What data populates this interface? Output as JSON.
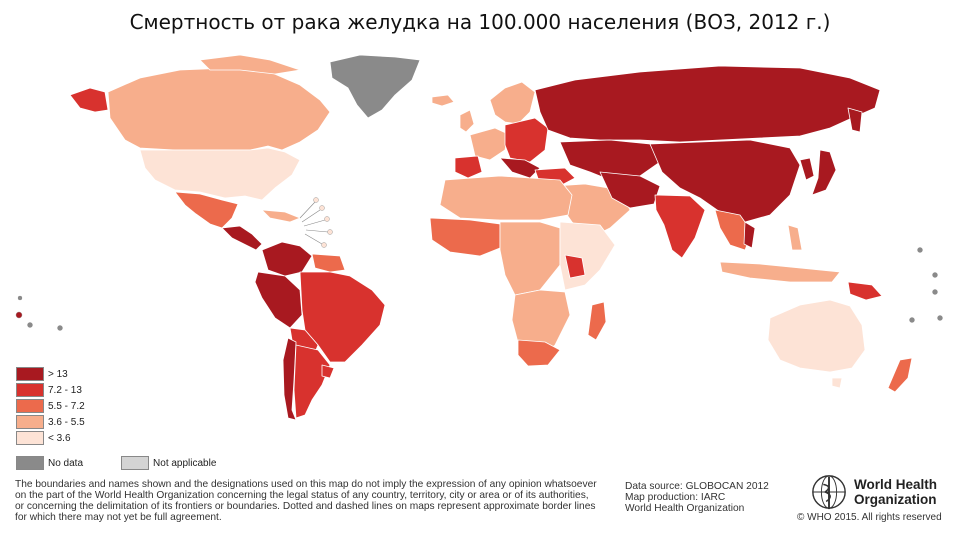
{
  "title": "Смертность от рака желудка на 100.000 населения (ВОЗ, 2012 г.)",
  "colors": {
    "c5": "#a81920",
    "c4": "#d8322e",
    "c3": "#ec6a4c",
    "c2": "#f7ae8c",
    "c1": "#fde3d6",
    "nodata": "#8a8a8a",
    "na": "#d4d4d4"
  },
  "legend": [
    {
      "label": ">  13",
      "color": "#a81920"
    },
    {
      "label": "7.2  -  13",
      "color": "#d8322e"
    },
    {
      "label": "5.5  -  7.2",
      "color": "#ec6a4c"
    },
    {
      "label": "3.6  -  5.5",
      "color": "#f7ae8c"
    },
    {
      "label": "<  3.6",
      "color": "#fde3d6"
    }
  ],
  "no_data_label": "No data",
  "not_applicable_label": "Not applicable",
  "disclaimer": [
    "The boundaries and names shown and the designations used on this map do not imply the expression of any opinion whatsoever",
    "on the part of the World Health Organization concerning the legal status of any country, territory, city or area or of its authorities,",
    "or concerning the delimitation of its frontiers or boundaries. Dotted and dashed lines on maps represent approximate border lines",
    "for which there may not yet be full agreement."
  ],
  "source": [
    "Data source: GLOBOCAN 2012",
    "Map production: IARC",
    "World Health Organization"
  ],
  "who_logo": {
    "line1": "World Health",
    "line2": "Organization",
    "icon": "who-emblem-icon"
  },
  "copyright": "© WHO 2015. All rights reserved"
}
